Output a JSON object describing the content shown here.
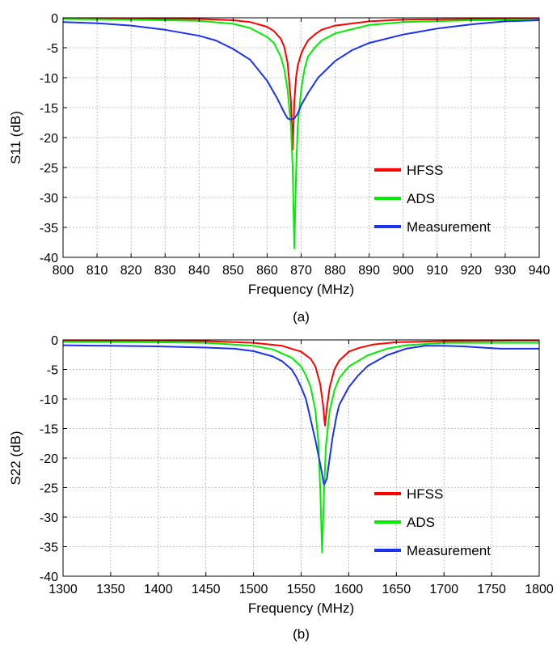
{
  "chart_data": [
    {
      "type": "line",
      "caption": "(a)",
      "xlabel": "Frequency (MHz)",
      "ylabel": "S11 (dB)",
      "xlim": [
        800,
        940
      ],
      "ylim": [
        -40,
        0
      ],
      "xticks": [
        800,
        810,
        820,
        830,
        840,
        850,
        860,
        870,
        880,
        890,
        900,
        910,
        920,
        930,
        940
      ],
      "yticks": [
        0,
        -5,
        -10,
        -15,
        -20,
        -25,
        -30,
        -35,
        -40
      ],
      "grid": true,
      "legend_position": "lower-right",
      "series": [
        {
          "name": "HFSS",
          "color": "#ff0000",
          "x": [
            800,
            820,
            840,
            850,
            855,
            860,
            862,
            864,
            865,
            866,
            867,
            867.5,
            868,
            868.5,
            869,
            870,
            871,
            872,
            874,
            876,
            880,
            890,
            900,
            920,
            940
          ],
          "y": [
            -0.1,
            -0.1,
            -0.2,
            -0.4,
            -0.7,
            -1.5,
            -2.2,
            -3.5,
            -4.8,
            -7.5,
            -14,
            -22,
            -14,
            -10,
            -8,
            -6,
            -4.8,
            -3.8,
            -2.8,
            -2.0,
            -1.3,
            -0.6,
            -0.3,
            -0.2,
            -0.1
          ]
        },
        {
          "name": "ADS",
          "color": "#00ee00",
          "x": [
            800,
            820,
            840,
            850,
            855,
            860,
            862,
            864,
            865,
            866,
            867,
            867.5,
            868,
            868.5,
            869,
            870,
            871,
            872,
            874,
            876,
            880,
            890,
            900,
            920,
            940
          ],
          "y": [
            -0.2,
            -0.3,
            -0.5,
            -1.0,
            -1.7,
            -3.2,
            -4.2,
            -6.5,
            -8.5,
            -12,
            -18,
            -25,
            -38.5,
            -26,
            -18,
            -12,
            -8.5,
            -6.5,
            -5.0,
            -3.8,
            -2.6,
            -1.2,
            -0.7,
            -0.4,
            -0.3
          ]
        },
        {
          "name": "Measurement",
          "color": "#1a33ee",
          "x": [
            800,
            810,
            820,
            830,
            840,
            845,
            850,
            855,
            860,
            863,
            865,
            866,
            867,
            868,
            869,
            870,
            872,
            875,
            880,
            885,
            890,
            900,
            910,
            920,
            930,
            940
          ],
          "y": [
            -0.7,
            -0.9,
            -1.3,
            -2.0,
            -3.0,
            -3.8,
            -5.2,
            -7.0,
            -10.5,
            -13.5,
            -15.8,
            -16.8,
            -17.0,
            -16.8,
            -16.0,
            -14.6,
            -12.6,
            -10.0,
            -7.2,
            -5.4,
            -4.2,
            -2.8,
            -1.8,
            -1.1,
            -0.6,
            -0.4
          ]
        }
      ]
    },
    {
      "type": "line",
      "caption": "(b)",
      "xlabel": "Frequency (MHz)",
      "ylabel": "S22 (dB)",
      "xlim": [
        1300,
        1800
      ],
      "ylim": [
        -40,
        0
      ],
      "xticks": [
        1300,
        1350,
        1400,
        1450,
        1500,
        1550,
        1600,
        1650,
        1700,
        1750,
        1800
      ],
      "yticks": [
        0,
        -5,
        -10,
        -15,
        -20,
        -25,
        -30,
        -35,
        -40
      ],
      "grid": true,
      "legend_position": "lower-right",
      "series": [
        {
          "name": "HFSS",
          "color": "#ff0000",
          "x": [
            1300,
            1400,
            1450,
            1500,
            1530,
            1550,
            1560,
            1565,
            1570,
            1573,
            1575,
            1577,
            1580,
            1585,
            1590,
            1600,
            1610,
            1625,
            1650,
            1700,
            1800
          ],
          "y": [
            -0.1,
            -0.1,
            -0.2,
            -0.5,
            -1.0,
            -2.0,
            -3.2,
            -4.5,
            -7.5,
            -11,
            -14.5,
            -11.5,
            -8.0,
            -5.0,
            -3.5,
            -2.0,
            -1.4,
            -0.8,
            -0.4,
            -0.2,
            -0.1
          ]
        },
        {
          "name": "ADS",
          "color": "#00ee00",
          "x": [
            1300,
            1400,
            1450,
            1500,
            1520,
            1540,
            1550,
            1555,
            1560,
            1565,
            1568,
            1570,
            1572,
            1574,
            1576,
            1580,
            1585,
            1590,
            1600,
            1620,
            1640,
            1660,
            1700,
            1800
          ],
          "y": [
            -0.3,
            -0.4,
            -0.5,
            -1.0,
            -1.6,
            -3.0,
            -4.5,
            -6.0,
            -8.0,
            -12,
            -17,
            -25,
            -36,
            -26,
            -18,
            -12,
            -8.5,
            -6.5,
            -4.5,
            -2.6,
            -1.5,
            -0.9,
            -0.5,
            -0.5
          ]
        },
        {
          "name": "Measurement",
          "color": "#1a33ee",
          "x": [
            1300,
            1400,
            1450,
            1480,
            1500,
            1520,
            1530,
            1540,
            1545,
            1550,
            1555,
            1560,
            1565,
            1570,
            1574,
            1577,
            1580,
            1583,
            1587,
            1590,
            1595,
            1600,
            1610,
            1620,
            1640,
            1660,
            1680,
            1700,
            1720,
            1740,
            1760,
            1780,
            1800
          ],
          "y": [
            -0.9,
            -1.1,
            -1.3,
            -1.5,
            -1.9,
            -2.8,
            -3.6,
            -5.0,
            -6.3,
            -8.0,
            -10,
            -13.5,
            -17,
            -21,
            -24.5,
            -23.5,
            -20,
            -16.5,
            -13,
            -11,
            -9.5,
            -8.0,
            -6.0,
            -4.4,
            -2.6,
            -1.5,
            -1.0,
            -1.0,
            -1.1,
            -1.3,
            -1.5,
            -1.5,
            -1.5
          ]
        }
      ]
    }
  ]
}
